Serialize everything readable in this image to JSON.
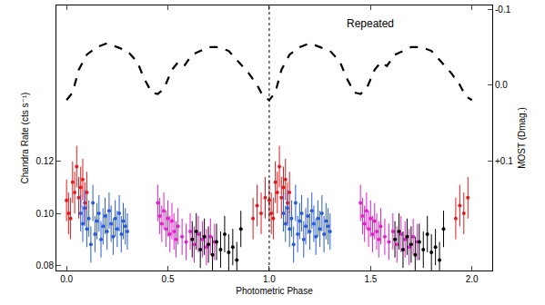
{
  "chart_data": {
    "type": "scatter",
    "x_label": "Photometric Phase",
    "y_label": "Chandra Rate (cts s⁻¹)",
    "y2_label": "MOST (Dmag.)",
    "annotation": "Repeated",
    "reference_line_x": 1,
    "xlim": [
      -0.05,
      2.1
    ],
    "xticks": [
      {
        "value": 0,
        "label": "0.0"
      },
      {
        "value": 0.5,
        "label": "0.5"
      },
      {
        "value": 1,
        "label": "1.0"
      },
      {
        "value": 1.5,
        "label": "1.5"
      },
      {
        "value": 2,
        "label": "2.0"
      }
    ],
    "ylim": [
      0.078,
      0.18
    ],
    "yticks": [
      {
        "value": 0.08,
        "label": "0.08"
      },
      {
        "value": 0.1,
        "label": "0.10"
      },
      {
        "value": 0.12,
        "label": "0.12"
      }
    ],
    "y2lim": [
      0.245,
      -0.105
    ],
    "y2ticks": [
      {
        "value": -0.1,
        "label": "-0.1"
      },
      {
        "value": 0,
        "label": "0.0"
      },
      {
        "value": 0.1,
        "label": "+0.1"
      }
    ],
    "grid": false,
    "series": [
      {
        "color": "#e31a1c",
        "marker": "circle",
        "x": [
          0,
          0.01,
          0.02,
          0.03,
          0.04,
          0.05,
          0.06,
          0.07,
          0.08,
          0.09,
          0.1,
          0.92,
          0.94,
          0.96,
          0.98,
          1,
          1.01,
          1.02,
          1.03,
          1.04,
          1.05,
          1.06,
          1.07,
          1.08,
          1.09,
          1.1,
          1.92,
          1.94,
          1.96,
          1.98
        ],
        "values": [
          0.105,
          0.1,
          0.098,
          0.112,
          0.108,
          0.118,
          0.106,
          0.11,
          0.113,
          0.104,
          0.108,
          0.098,
          0.103,
          0.1,
          0.106,
          0.105,
          0.1,
          0.098,
          0.112,
          0.108,
          0.118,
          0.106,
          0.11,
          0.113,
          0.104,
          0.108,
          0.098,
          0.103,
          0.1,
          0.106
        ],
        "errors": [
          0.008,
          0.008,
          0.008,
          0.008,
          0.008,
          0.008,
          0.008,
          0.008,
          0.008,
          0.008,
          0.008,
          0.008,
          0.008,
          0.008,
          0.008,
          0.008,
          0.008,
          0.008,
          0.008,
          0.008,
          0.008,
          0.008,
          0.008,
          0.008,
          0.008,
          0.008,
          0.008,
          0.008,
          0.008,
          0.008
        ]
      },
      {
        "color": "#2a5bd7",
        "marker": "circle",
        "x": [
          0.07,
          0.08,
          0.09,
          0.1,
          0.11,
          0.12,
          0.13,
          0.14,
          0.15,
          0.16,
          0.17,
          0.18,
          0.19,
          0.2,
          0.21,
          0.22,
          0.23,
          0.24,
          0.25,
          0.26,
          0.27,
          0.28,
          0.29,
          0.3,
          1.07,
          1.08,
          1.09,
          1.1,
          1.11,
          1.12,
          1.13,
          1.14,
          1.15,
          1.16,
          1.17,
          1.18,
          1.19,
          1.2,
          1.21,
          1.22,
          1.23,
          1.24,
          1.25,
          1.26,
          1.27,
          1.28,
          1.29,
          1.3
        ],
        "values": [
          0.1,
          0.096,
          0.102,
          0.094,
          0.098,
          0.088,
          0.104,
          0.092,
          0.097,
          0.1,
          0.09,
          0.095,
          0.099,
          0.093,
          0.101,
          0.096,
          0.091,
          0.098,
          0.094,
          0.1,
          0.092,
          0.097,
          0.095,
          0.093,
          0.1,
          0.096,
          0.102,
          0.094,
          0.098,
          0.088,
          0.104,
          0.092,
          0.097,
          0.1,
          0.09,
          0.095,
          0.099,
          0.093,
          0.101,
          0.096,
          0.091,
          0.098,
          0.094,
          0.1,
          0.092,
          0.097,
          0.095,
          0.093
        ],
        "errors": [
          0.007,
          0.007,
          0.007,
          0.007,
          0.007,
          0.007,
          0.007,
          0.007,
          0.007,
          0.007,
          0.007,
          0.007,
          0.007,
          0.007,
          0.007,
          0.007,
          0.007,
          0.007,
          0.007,
          0.007,
          0.007,
          0.007,
          0.007,
          0.007,
          0.007,
          0.007,
          0.007,
          0.007,
          0.007,
          0.007,
          0.007,
          0.007,
          0.007,
          0.007,
          0.007,
          0.007,
          0.007,
          0.007,
          0.007,
          0.007,
          0.007,
          0.007,
          0.007,
          0.007,
          0.007,
          0.007,
          0.007,
          0.007
        ]
      },
      {
        "color": "#e020c8",
        "marker": "circle",
        "x": [
          0.45,
          0.46,
          0.47,
          0.48,
          0.49,
          0.5,
          0.51,
          0.52,
          0.53,
          0.54,
          0.55,
          0.57,
          0.59,
          0.61,
          0.63,
          0.65,
          0.67,
          0.69,
          0.71,
          0.73,
          1.45,
          1.46,
          1.47,
          1.48,
          1.49,
          1.5,
          1.51,
          1.52,
          1.53,
          1.54,
          1.55,
          1.57,
          1.59,
          1.61,
          1.63,
          1.65,
          1.67,
          1.69,
          1.71,
          1.73
        ],
        "values": [
          0.104,
          0.099,
          0.096,
          0.101,
          0.094,
          0.098,
          0.092,
          0.097,
          0.093,
          0.09,
          0.095,
          0.091,
          0.089,
          0.093,
          0.088,
          0.092,
          0.09,
          0.087,
          0.091,
          0.089,
          0.104,
          0.099,
          0.096,
          0.101,
          0.094,
          0.098,
          0.092,
          0.097,
          0.093,
          0.09,
          0.095,
          0.091,
          0.089,
          0.093,
          0.088,
          0.092,
          0.09,
          0.087,
          0.091,
          0.089
        ],
        "errors": [
          0.007,
          0.007,
          0.007,
          0.007,
          0.007,
          0.007,
          0.007,
          0.007,
          0.007,
          0.007,
          0.007,
          0.007,
          0.007,
          0.007,
          0.007,
          0.007,
          0.007,
          0.007,
          0.007,
          0.007,
          0.007,
          0.007,
          0.007,
          0.007,
          0.007,
          0.007,
          0.007,
          0.007,
          0.007,
          0.007,
          0.007,
          0.007,
          0.007,
          0.007,
          0.007,
          0.007,
          0.007,
          0.007,
          0.007,
          0.007
        ]
      },
      {
        "color": "#000000",
        "marker": "circle",
        "x": [
          0.62,
          0.64,
          0.66,
          0.68,
          0.7,
          0.72,
          0.74,
          0.76,
          0.78,
          0.8,
          0.82,
          0.84,
          0.86,
          1.62,
          1.64,
          1.66,
          1.68,
          1.7,
          1.72,
          1.74,
          1.76,
          1.78,
          1.8,
          1.82,
          1.84,
          1.86
        ],
        "values": [
          0.09,
          0.093,
          0.086,
          0.091,
          0.088,
          0.084,
          0.089,
          0.086,
          0.092,
          0.085,
          0.087,
          0.082,
          0.094,
          0.09,
          0.093,
          0.086,
          0.091,
          0.088,
          0.084,
          0.089,
          0.086,
          0.092,
          0.085,
          0.087,
          0.082,
          0.094
        ],
        "errors": [
          0.007,
          0.007,
          0.007,
          0.007,
          0.007,
          0.007,
          0.007,
          0.007,
          0.007,
          0.007,
          0.007,
          0.007,
          0.007,
          0.007,
          0.007,
          0.007,
          0.007,
          0.007,
          0.007,
          0.007,
          0.007,
          0.007,
          0.007,
          0.007,
          0.007,
          0.007
        ]
      },
      {
        "color": "#000000",
        "type": "line",
        "line_style": "dash",
        "axis": "y2",
        "x": [
          0,
          0.03,
          0.06,
          0.1,
          0.15,
          0.2,
          0.25,
          0.3,
          0.35,
          0.38,
          0.42,
          0.45,
          0.48,
          0.52,
          0.55,
          0.58,
          0.62,
          0.7,
          0.75,
          0.8,
          0.85,
          0.9,
          0.94,
          0.97,
          1,
          1,
          1.03,
          1.06,
          1.1,
          1.15,
          1.2,
          1.25,
          1.3,
          1.35,
          1.38,
          1.42,
          1.45,
          1.48,
          1.52,
          1.55,
          1.58,
          1.62,
          1.7,
          1.75,
          1.8,
          1.85,
          1.9,
          1.94,
          1.97,
          2
        ],
        "values": [
          0.02,
          0.01,
          -0.02,
          -0.04,
          -0.05,
          -0.055,
          -0.05,
          -0.045,
          -0.03,
          -0.01,
          0.01,
          0.012,
          0.005,
          -0.02,
          -0.03,
          -0.025,
          -0.04,
          -0.05,
          -0.05,
          -0.045,
          -0.03,
          -0.015,
          0,
          0.015,
          0.02,
          0.02,
          0.01,
          -0.02,
          -0.04,
          -0.05,
          -0.055,
          -0.05,
          -0.045,
          -0.03,
          -0.01,
          0.01,
          0.012,
          0.005,
          -0.02,
          -0.03,
          -0.025,
          -0.04,
          -0.05,
          -0.05,
          -0.045,
          -0.03,
          -0.015,
          0,
          0.015,
          0.02
        ]
      }
    ]
  }
}
